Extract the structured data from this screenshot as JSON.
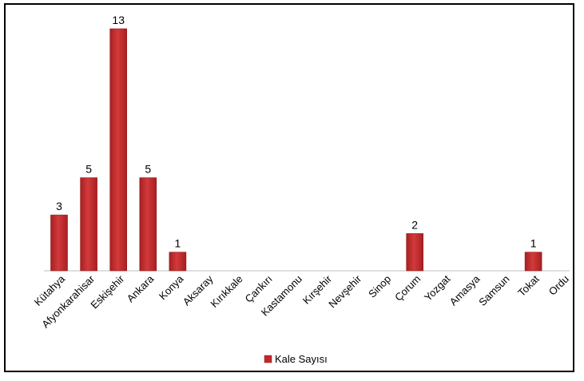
{
  "chart_data": {
    "type": "bar",
    "categories": [
      "Kütahya",
      "Afyonkarahisar",
      "Eskişehir",
      "Ankara",
      "Konya",
      "Aksaray",
      "Kırıkkale",
      "Çankırı",
      "Kastamonu",
      "Kırşehir",
      "Nevşehir",
      "Sinop",
      "Çorum",
      "Yozgat",
      "Amasya",
      "Samsun",
      "Tokat",
      "Ordu"
    ],
    "series": [
      {
        "name": "Kale Sayısı",
        "values": [
          3,
          5,
          13,
          5,
          1,
          0,
          0,
          0,
          0,
          0,
          0,
          0,
          2,
          0,
          0,
          0,
          1,
          0
        ]
      }
    ],
    "data_labels_shown_for_nonzero": true,
    "legend": "bottom",
    "grid": false,
    "ylim": [
      0,
      13
    ],
    "colors": {
      "bar": "#c0292b",
      "bar_edge": "#8f1b1d",
      "axis": "#bfbfbf"
    }
  }
}
